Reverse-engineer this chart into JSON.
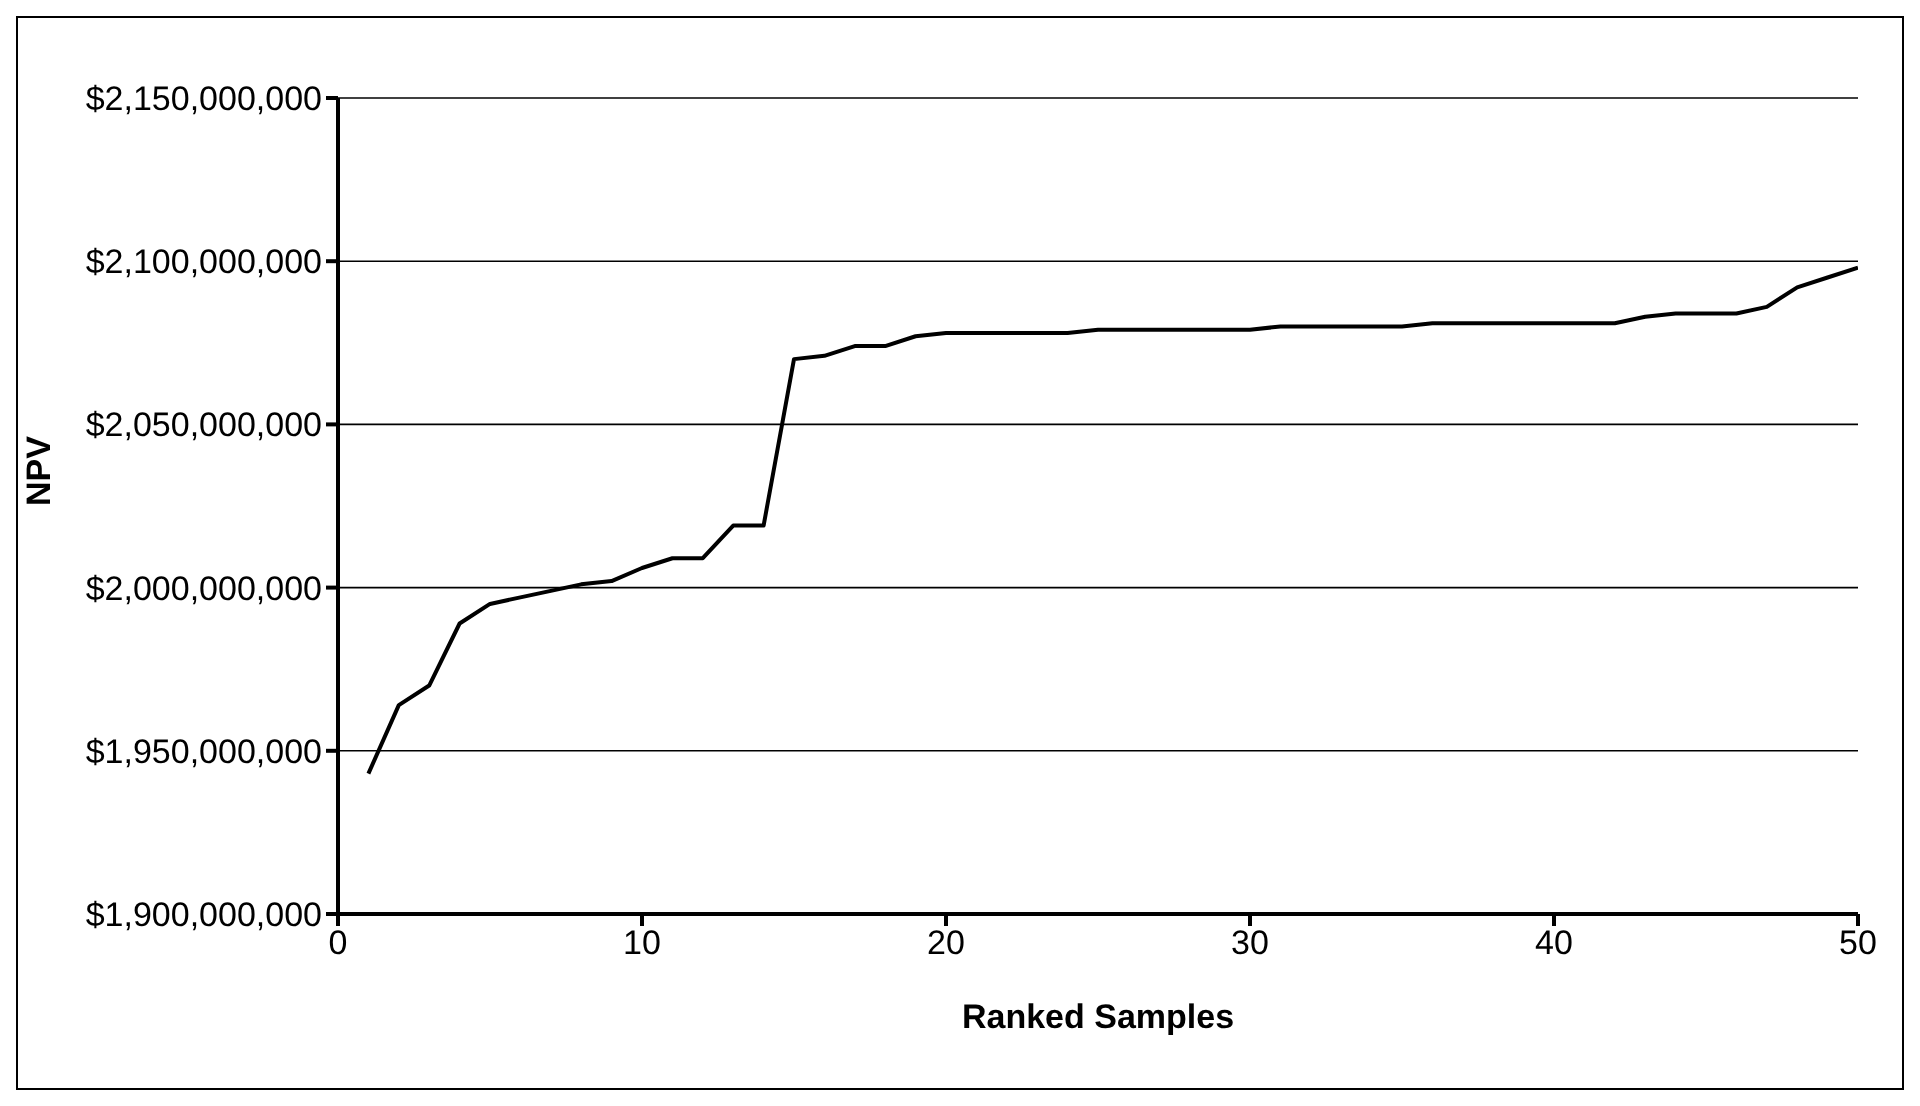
{
  "chart_data": {
    "type": "line",
    "xlabel": "Ranked Samples",
    "ylabel": "NPV",
    "x": [
      1,
      2,
      3,
      4,
      5,
      6,
      7,
      8,
      9,
      10,
      11,
      12,
      13,
      14,
      15,
      16,
      17,
      18,
      19,
      20,
      21,
      22,
      23,
      24,
      25,
      26,
      27,
      28,
      29,
      30,
      31,
      32,
      33,
      34,
      35,
      36,
      37,
      38,
      39,
      40,
      41,
      42,
      43,
      44,
      45,
      46,
      47,
      48,
      49,
      50
    ],
    "series": [
      {
        "color": "#000000",
        "values": [
          1943000000,
          1964000000,
          1970000000,
          1989000000,
          1995000000,
          1997000000,
          1999000000,
          2001000000,
          2002000000,
          2006000000,
          2009000000,
          2009000000,
          2019000000,
          2019000000,
          2070000000,
          2071000000,
          2074000000,
          2074000000,
          2077000000,
          2078000000,
          2078000000,
          2078000000,
          2078000000,
          2078000000,
          2079000000,
          2079000000,
          2079000000,
          2079000000,
          2079000000,
          2079000000,
          2080000000,
          2080000000,
          2080000000,
          2080000000,
          2080000000,
          2081000000,
          2081000000,
          2081000000,
          2081000000,
          2081000000,
          2081000000,
          2081000000,
          2083000000,
          2084000000,
          2084000000,
          2084000000,
          2086000000,
          2092000000,
          2095000000,
          2098000000
        ]
      }
    ],
    "xlim": [
      0,
      50
    ],
    "xticks": [
      0,
      10,
      20,
      30,
      40,
      50
    ],
    "ylim": [
      1900000000,
      2150000000
    ],
    "yticks": [
      {
        "value": 1900000000,
        "label": "$1,900,000,000"
      },
      {
        "value": 1950000000,
        "label": "$1,950,000,000"
      },
      {
        "value": 2000000000,
        "label": "$2,000,000,000"
      },
      {
        "value": 2050000000,
        "label": "$2,050,000,000"
      },
      {
        "value": 2100000000,
        "label": "$2,100,000,000"
      },
      {
        "value": 2150000000,
        "label": "$2,150,000,000"
      }
    ],
    "grid": "y",
    "marker": "none",
    "line_style": "solid",
    "legend": false
  }
}
